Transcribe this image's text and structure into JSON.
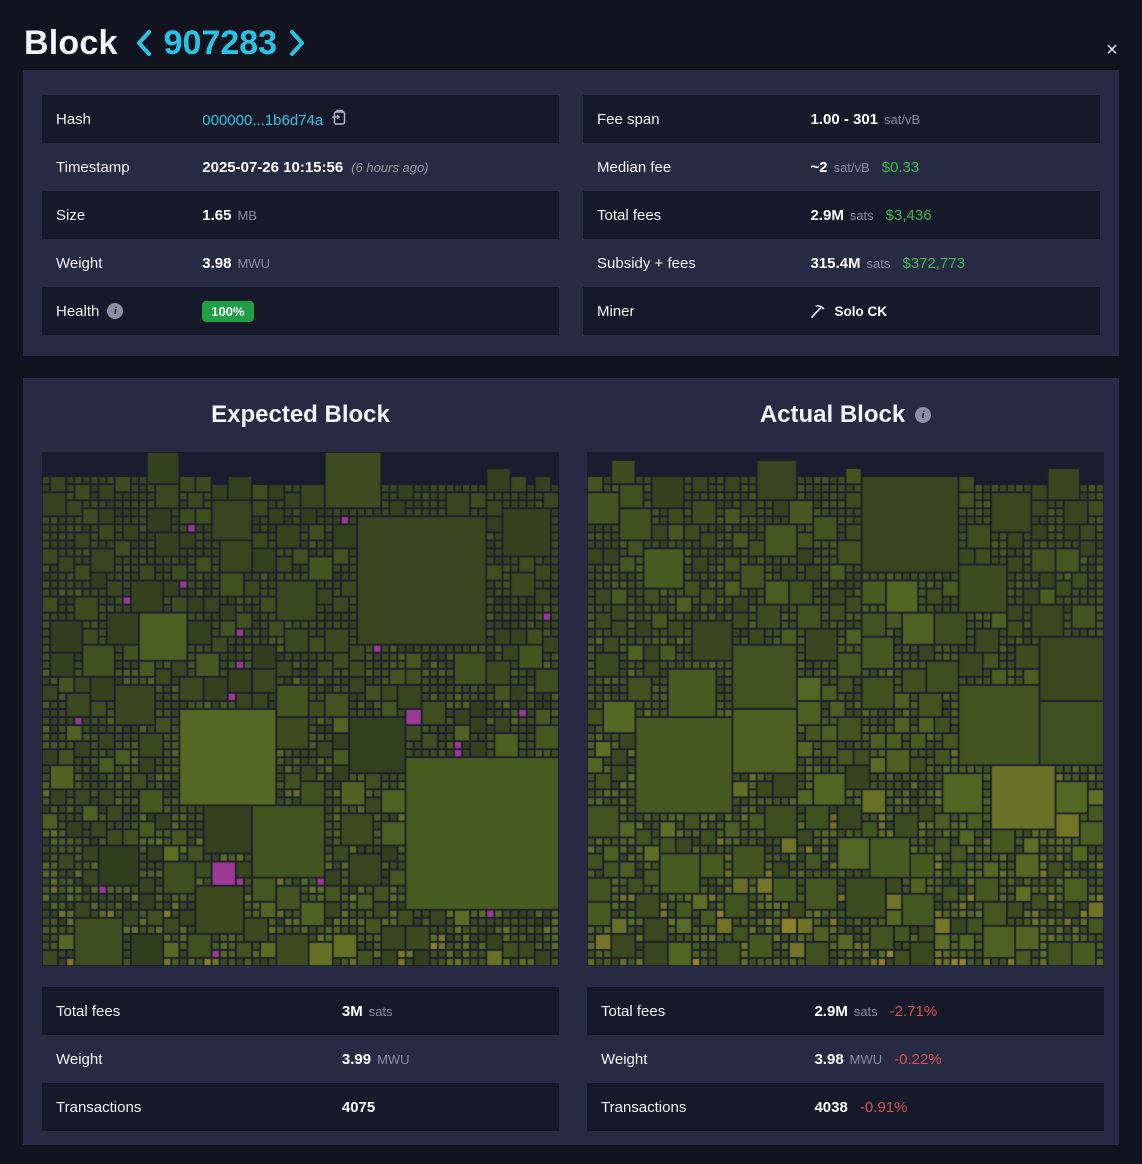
{
  "header": {
    "title": "Block",
    "block_height": "907283",
    "close_label": "×"
  },
  "colors": {
    "accent_cyan": "#29c4e5",
    "usd_green": "#3eb650",
    "health_badge_green": "#1e9e45",
    "delta_red": "#dc5050",
    "panel_bg": "#262a42",
    "page_bg": "#11131f"
  },
  "details": {
    "hash": {
      "label": "Hash",
      "value": "000000...1b6d74a"
    },
    "timestamp": {
      "label": "Timestamp",
      "value": "2025-07-26 10:15:56",
      "relative": "(6 hours ago)"
    },
    "size": {
      "label": "Size",
      "value": "1.65",
      "unit": "MB"
    },
    "weight": {
      "label": "Weight",
      "value": "3.98",
      "unit": "MWU"
    },
    "health": {
      "label": "Health",
      "value": "100%"
    },
    "fee_span": {
      "label": "Fee span",
      "value": "1.00 - 301",
      "unit": "sat/vB"
    },
    "median_fee": {
      "label": "Median fee",
      "value": "~2",
      "unit": "sat/vB",
      "usd": "$0.33"
    },
    "total_fees": {
      "label": "Total fees",
      "value": "2.9M",
      "unit": "sats",
      "usd": "$3,436"
    },
    "subsidy_fees": {
      "label": "Subsidy + fees",
      "value": "315.4M",
      "unit": "sats",
      "usd": "$372,773"
    },
    "miner": {
      "label": "Miner",
      "value": "Solo CK"
    }
  },
  "comparison": {
    "expected": {
      "heading": "Expected Block",
      "total_fees": {
        "label": "Total fees",
        "value": "3M",
        "unit": "sats"
      },
      "weight": {
        "label": "Weight",
        "value": "3.99",
        "unit": "MWU"
      },
      "transactions": {
        "label": "Transactions",
        "value": "4075"
      }
    },
    "actual": {
      "heading": "Actual Block",
      "total_fees": {
        "label": "Total fees",
        "value": "2.9M",
        "unit": "sats",
        "delta": "-2.71%"
      },
      "weight": {
        "label": "Weight",
        "value": "3.98",
        "unit": "MWU",
        "delta": "-0.22%"
      },
      "transactions": {
        "label": "Transactions",
        "value": "4038",
        "delta": "-0.91%"
      }
    }
  },
  "chart_data": [
    {
      "type": "treemap",
      "title": "Expected Block",
      "description": "Block template transaction mosaic; square area = tx vsize, color = fee rate (dark green low, yellow/orange high, magenta = txs not in mined block)",
      "transactions": 4075,
      "total_fees": "3M sats",
      "weight": "3.99 MWU",
      "render": {
        "seed": 907283,
        "grid": 64,
        "fill": 0.955,
        "base": 0.16,
        "magenta_ratio": 0.018,
        "magenta": "#9c3a96",
        "background": "#1a1d2e",
        "palette": [
          [
            0,
            "#2c3a1d"
          ],
          [
            0.22,
            "#39481f"
          ],
          [
            0.42,
            "#475c20"
          ],
          [
            0.58,
            "#556b24"
          ],
          [
            0.72,
            "#6d7226"
          ],
          [
            0.84,
            "#8a8029"
          ],
          [
            0.93,
            "#9f8d2e"
          ],
          [
            1,
            "#a86f28"
          ]
        ]
      }
    },
    {
      "type": "treemap",
      "title": "Actual Block",
      "description": "Mined block transaction mosaic; square area = tx vsize, color = fee rate",
      "transactions": 4038,
      "total_fees": "2.9M sats",
      "weight": "3.98 MWU",
      "render": {
        "seed": 424271,
        "grid": 64,
        "fill": 0.955,
        "base": 0.24,
        "magenta_ratio": 0,
        "magenta": "#9c3a96",
        "background": "#1a1d2e",
        "palette": [
          [
            0,
            "#2c3a1d"
          ],
          [
            0.22,
            "#39481f"
          ],
          [
            0.42,
            "#475c20"
          ],
          [
            0.58,
            "#556b24"
          ],
          [
            0.72,
            "#6d7226"
          ],
          [
            0.84,
            "#8a8029"
          ],
          [
            0.93,
            "#9f8d2e"
          ],
          [
            1,
            "#a86f28"
          ]
        ]
      }
    }
  ]
}
